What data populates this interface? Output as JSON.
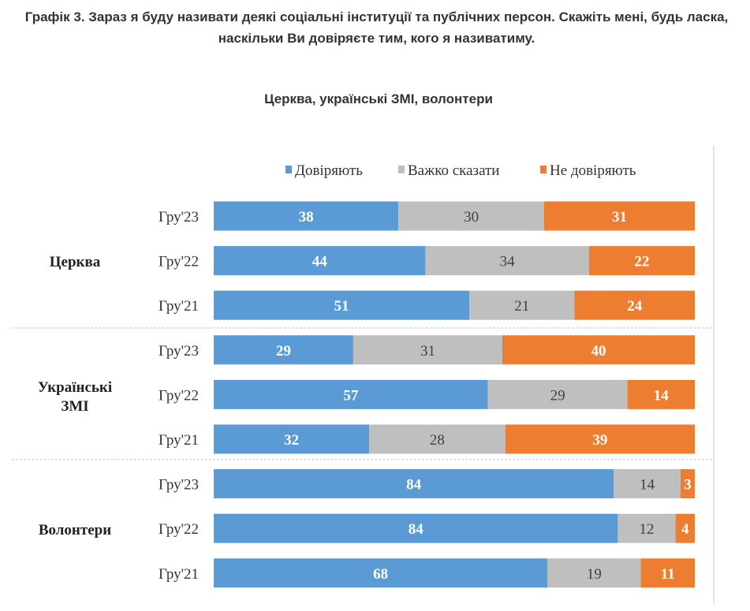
{
  "chart_data": {
    "type": "bar",
    "orientation": "horizontal",
    "stacked": "100%",
    "title": "Графік 3. Зараз я буду називати деякі соціальні інституції та публічних персон. Скажіть мені, будь ласка, наскільки Ви довіряєте тим, кого я називатиму.",
    "subtitle": "Церква, українські ЗМІ, волонтери",
    "legend_position": "top",
    "groups": [
      {
        "name": "Церква",
        "categories": [
          "Гру'23",
          "Гру'22",
          "Гру'21"
        ]
      },
      {
        "name": "Українські ЗМІ",
        "categories": [
          "Гру'23",
          "Гру'22",
          "Гру'21"
        ]
      },
      {
        "name": "Волонтери",
        "categories": [
          "Гру'23",
          "Гру'22",
          "Гру'21"
        ]
      }
    ],
    "series": [
      {
        "name": "Довіряють",
        "color": "#5B9BD5",
        "values": [
          38,
          44,
          51,
          29,
          57,
          32,
          84,
          84,
          68
        ]
      },
      {
        "name": "Важко сказати",
        "color": "#BFBFBF",
        "values": [
          30,
          34,
          21,
          31,
          29,
          28,
          14,
          12,
          19
        ]
      },
      {
        "name": "Не  довіряють",
        "color": "#ED7D31",
        "values": [
          31,
          22,
          24,
          40,
          14,
          39,
          3,
          4,
          11
        ]
      }
    ]
  }
}
